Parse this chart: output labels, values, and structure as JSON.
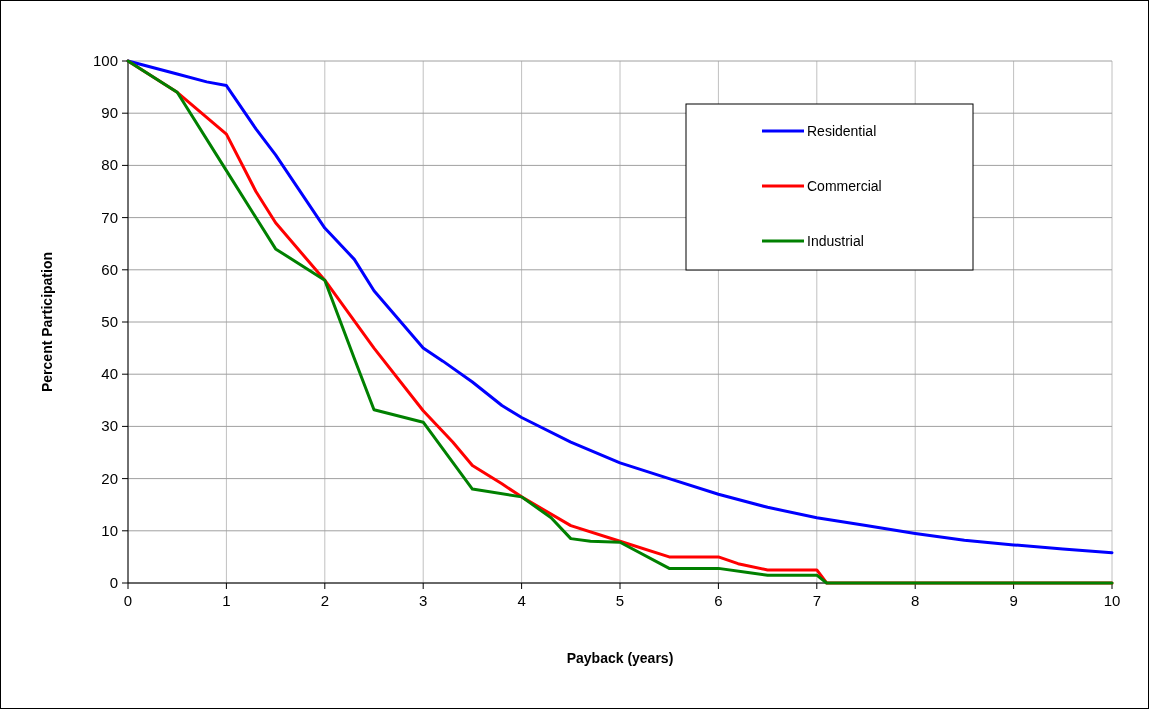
{
  "chart_data": {
    "type": "line",
    "xlabel": "Payback  (years)",
    "ylabel": "Percent Participation",
    "xlim": [
      0,
      10
    ],
    "xticks": [
      0,
      1,
      2,
      3,
      4,
      5,
      6,
      7,
      8,
      9,
      10
    ],
    "ylim": [
      0,
      100
    ],
    "yticks": [
      0,
      10,
      20,
      30,
      40,
      50,
      60,
      70,
      80,
      90,
      100
    ],
    "grid": true,
    "legend": "top right",
    "marker": "none",
    "line_style": "solid",
    "series": [
      {
        "name": "Residential",
        "color": "#0000ff",
        "x": [
          0,
          0.5,
          0.8,
          1,
          1.3,
          1.5,
          2,
          2.3,
          2.5,
          3,
          3.2,
          3.5,
          3.8,
          4,
          4.5,
          5,
          5.5,
          6,
          6.5,
          7,
          7.5,
          8,
          8.5,
          9,
          9.5,
          10
        ],
        "values": [
          100,
          97.5,
          96,
          95.3,
          87,
          82,
          68,
          62,
          56,
          45,
          42.5,
          38.5,
          34,
          31.7,
          27,
          23,
          20,
          17,
          14.5,
          12.5,
          11,
          9.5,
          8.2,
          7.3,
          6.5,
          5.8
        ]
      },
      {
        "name": "Commercial",
        "color": "#ff0000",
        "x": [
          0,
          0.5,
          1,
          1.3,
          1.5,
          2,
          2.5,
          3,
          3.3,
          3.5,
          3.8,
          4,
          4.5,
          5,
          5.5,
          6,
          6.2,
          6.5,
          7,
          7.1,
          10
        ],
        "values": [
          100,
          94,
          86,
          75,
          69,
          58,
          45,
          33,
          27,
          22.5,
          19,
          16.5,
          11,
          8,
          5,
          5,
          3.7,
          2.5,
          2.5,
          0,
          0
        ]
      },
      {
        "name": "Industrial",
        "color": "#008000",
        "x": [
          0,
          0.5,
          1,
          1.5,
          2,
          2.3,
          2.5,
          3,
          3.5,
          4,
          4.3,
          4.5,
          4.7,
          5,
          5.5,
          6,
          6.3,
          6.5,
          7,
          7.1,
          10
        ],
        "values": [
          100,
          94,
          79,
          64,
          58,
          43,
          33.2,
          30.8,
          18,
          16.5,
          12.5,
          8.5,
          8,
          7.8,
          2.8,
          2.8,
          2,
          1.5,
          1.5,
          0,
          0
        ]
      }
    ]
  }
}
